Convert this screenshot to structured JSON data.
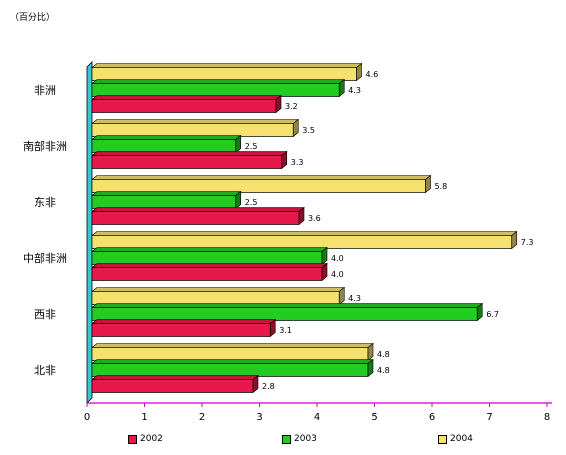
{
  "chart_data": {
    "type": "bar",
    "orientation": "horizontal",
    "unit_note": "（百分比）",
    "categories": [
      "非洲",
      "南部非洲",
      "东非",
      "中部非洲",
      "西非",
      "北非"
    ],
    "series": [
      {
        "name": "2002",
        "color": "#e8194a",
        "values": [
          3.2,
          3.3,
          3.6,
          4.0,
          3.1,
          2.8
        ]
      },
      {
        "name": "2003",
        "color": "#22cc22",
        "values": [
          4.3,
          2.5,
          2.5,
          4.0,
          6.7,
          4.8
        ]
      },
      {
        "name": "2004",
        "color": "#f5e070",
        "values": [
          4.6,
          3.5,
          5.8,
          7.3,
          4.3,
          4.8
        ]
      }
    ],
    "xlim": [
      0,
      8
    ],
    "xticks": [
      "0",
      "1",
      "2",
      "3",
      "4",
      "5",
      "6",
      "7",
      "8"
    ],
    "data_labels": [
      [
        "3.2",
        "4.3",
        "4.6"
      ],
      [
        "3.3",
        "2.5",
        "3.5"
      ],
      [
        "3.6",
        "2.5",
        "5.8"
      ],
      [
        "4.0",
        "4.0",
        "7.3"
      ],
      [
        "3.1",
        "6.7",
        "4.3"
      ],
      [
        "2.8",
        "4.8",
        "4.8"
      ]
    ],
    "legend_position": "bottom",
    "grid": false,
    "wall_color": "#33cccc",
    "axis_color": "#cc00cc"
  }
}
